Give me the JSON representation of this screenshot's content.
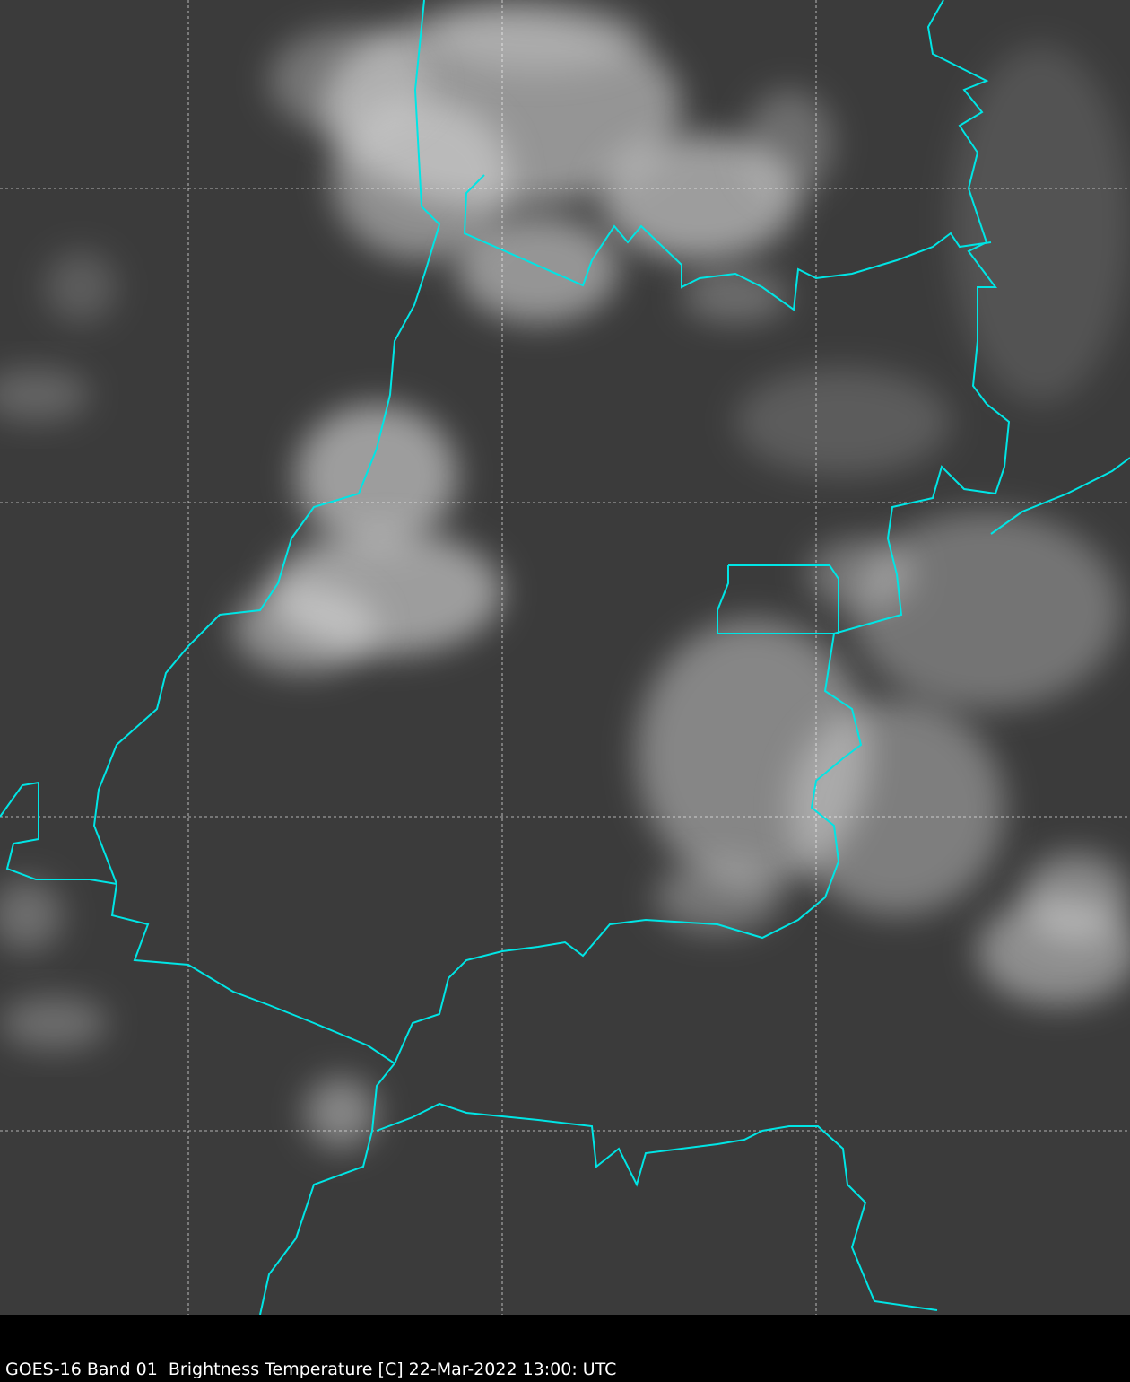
{
  "caption": "GOES-16 Band 01  Brightness Temperature [C] 22-Mar-2022 13:00: UTC",
  "colors": {
    "background": "#3a3a3a",
    "border": "#00e5e5",
    "grid": "#ffffff",
    "caption_bar": "#000000"
  },
  "map": {
    "grid": true,
    "grid_style": "dashed",
    "borders": "political boundaries",
    "imagery": "visible satellite grayscale"
  }
}
